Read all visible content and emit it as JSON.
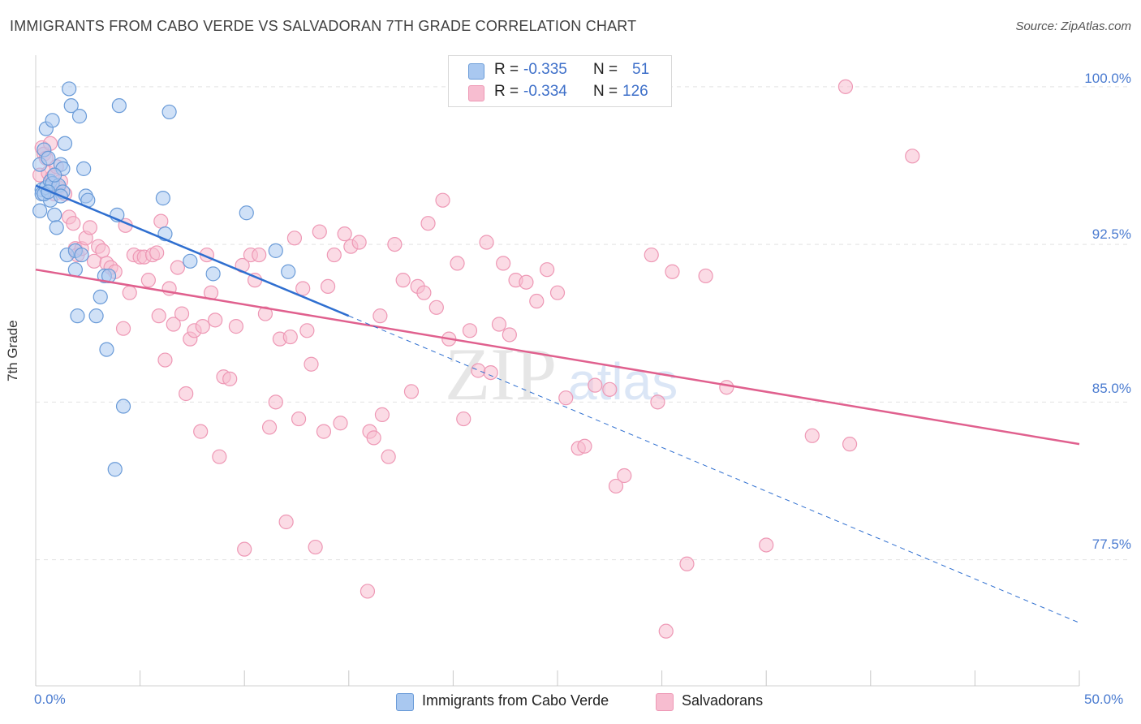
{
  "title": "IMMIGRANTS FROM CABO VERDE VS SALVADORAN 7TH GRADE CORRELATION CHART",
  "source": "Source: ZipAtlas.com",
  "watermark": {
    "zip": "ZIP",
    "atlas": "atlas"
  },
  "legend": {
    "rows": [
      {
        "r_label": "R =",
        "r_value": "-0.335",
        "n_label": "N =",
        "n_value": "51"
      },
      {
        "r_label": "R =",
        "r_value": "-0.334",
        "n_label": "N =",
        "n_value": "126"
      }
    ]
  },
  "bottom_legend": [
    "Immigrants from Cabo Verde",
    "Salvadorans"
  ],
  "colors": {
    "blue_fill": "#a9c8f0",
    "blue_stroke": "#6a9bd8",
    "blue_line": "#2f6fd0",
    "pink_fill": "#f7bdd0",
    "pink_stroke": "#ee98b5",
    "pink_line": "#e0608e",
    "tick_text": "#4a7bd0",
    "grid": "#e2e2e2"
  },
  "chart_data": {
    "type": "scatter",
    "title": "IMMIGRANTS FROM CABO VERDE VS SALVADORAN 7TH GRADE CORRELATION CHART",
    "xlabel": "",
    "ylabel": "7th Grade",
    "xlim": [
      0,
      50
    ],
    "ylim": [
      71.5,
      101.5
    ],
    "x_tick_labels": [
      "0.0%",
      "50.0%"
    ],
    "y_ticks": [
      77.5,
      85.0,
      92.5,
      100.0
    ],
    "y_tick_labels": [
      "77.5%",
      "85.0%",
      "92.5%",
      "100.0%"
    ],
    "grid": true,
    "legend_placement": "top-center",
    "series": [
      {
        "name": "Immigrants from Cabo Verde",
        "color": "blue",
        "r": -0.335,
        "n": 51,
        "trend": {
          "x0": 0.0,
          "y0": 95.3,
          "x1": 15.0,
          "y1": 89.1,
          "dashed_to_x": 50.0,
          "dashed_to_y": 74.5
        },
        "points": [
          [
            0.2,
            96.3
          ],
          [
            0.2,
            94.1
          ],
          [
            0.3,
            95.1
          ],
          [
            0.3,
            94.9
          ],
          [
            0.4,
            97.0
          ],
          [
            0.5,
            98.0
          ],
          [
            0.5,
            95.2
          ],
          [
            0.6,
            96.6
          ],
          [
            0.7,
            95.5
          ],
          [
            0.7,
            94.6
          ],
          [
            0.8,
            98.4
          ],
          [
            0.8,
            95.4
          ],
          [
            0.9,
            93.9
          ],
          [
            1.0,
            93.3
          ],
          [
            1.1,
            95.3
          ],
          [
            1.2,
            96.3
          ],
          [
            1.3,
            96.1
          ],
          [
            1.3,
            95.0
          ],
          [
            1.4,
            97.3
          ],
          [
            1.5,
            92.0
          ],
          [
            1.6,
            99.9
          ],
          [
            1.7,
            99.1
          ],
          [
            1.9,
            92.2
          ],
          [
            1.9,
            91.3
          ],
          [
            2.0,
            89.1
          ],
          [
            2.1,
            98.6
          ],
          [
            2.3,
            96.1
          ],
          [
            2.4,
            94.8
          ],
          [
            2.5,
            94.6
          ],
          [
            2.9,
            89.1
          ],
          [
            3.1,
            90.0
          ],
          [
            3.3,
            91.0
          ],
          [
            3.4,
            87.5
          ],
          [
            3.5,
            91.0
          ],
          [
            3.8,
            81.8
          ],
          [
            3.9,
            93.9
          ],
          [
            4.0,
            99.1
          ],
          [
            4.2,
            84.8
          ],
          [
            6.1,
            94.7
          ],
          [
            6.2,
            93.0
          ],
          [
            6.4,
            98.8
          ],
          [
            7.4,
            91.7
          ],
          [
            8.5,
            91.1
          ],
          [
            10.1,
            94.0
          ],
          [
            11.5,
            92.2
          ],
          [
            12.1,
            91.2
          ],
          [
            0.4,
            94.9
          ],
          [
            0.6,
            95.0
          ],
          [
            0.9,
            95.8
          ],
          [
            1.2,
            94.8
          ],
          [
            2.2,
            92.0
          ]
        ]
      },
      {
        "name": "Salvadorans",
        "color": "pink",
        "r": -0.334,
        "n": 126,
        "trend": {
          "x0": 0.0,
          "y0": 91.3,
          "x1": 50.0,
          "y1": 83.0
        },
        "points": [
          [
            0.2,
            95.8
          ],
          [
            0.3,
            97.1
          ],
          [
            0.4,
            96.8
          ],
          [
            0.5,
            96.6
          ],
          [
            0.6,
            95.9
          ],
          [
            0.7,
            97.3
          ],
          [
            0.8,
            95.7
          ],
          [
            0.9,
            94.9
          ],
          [
            1.0,
            96.2
          ],
          [
            1.1,
            95.2
          ],
          [
            1.2,
            95.5
          ],
          [
            1.4,
            94.9
          ],
          [
            1.6,
            93.8
          ],
          [
            1.8,
            93.5
          ],
          [
            1.9,
            92.3
          ],
          [
            2.0,
            92.0
          ],
          [
            2.2,
            92.3
          ],
          [
            2.4,
            92.8
          ],
          [
            2.6,
            93.3
          ],
          [
            2.8,
            91.7
          ],
          [
            3.0,
            92.4
          ],
          [
            3.2,
            92.2
          ],
          [
            3.4,
            91.6
          ],
          [
            3.6,
            91.4
          ],
          [
            3.8,
            91.2
          ],
          [
            4.2,
            88.5
          ],
          [
            4.3,
            93.4
          ],
          [
            4.5,
            90.2
          ],
          [
            4.7,
            92.0
          ],
          [
            5.0,
            91.9
          ],
          [
            5.2,
            91.9
          ],
          [
            5.4,
            90.8
          ],
          [
            5.6,
            92.0
          ],
          [
            5.8,
            92.1
          ],
          [
            5.9,
            89.1
          ],
          [
            6.0,
            93.6
          ],
          [
            6.2,
            87.0
          ],
          [
            6.4,
            90.4
          ],
          [
            6.6,
            88.7
          ],
          [
            6.8,
            91.4
          ],
          [
            7.0,
            89.2
          ],
          [
            7.2,
            85.4
          ],
          [
            7.4,
            88.0
          ],
          [
            7.6,
            88.4
          ],
          [
            7.9,
            83.6
          ],
          [
            8.0,
            88.6
          ],
          [
            8.2,
            92.0
          ],
          [
            8.4,
            90.2
          ],
          [
            8.6,
            88.9
          ],
          [
            8.8,
            82.4
          ],
          [
            9.0,
            86.2
          ],
          [
            9.3,
            86.1
          ],
          [
            9.6,
            88.6
          ],
          [
            9.9,
            91.5
          ],
          [
            10.0,
            78.0
          ],
          [
            10.3,
            92.0
          ],
          [
            10.5,
            90.8
          ],
          [
            10.7,
            92.0
          ],
          [
            11.0,
            89.2
          ],
          [
            11.2,
            83.8
          ],
          [
            11.5,
            85.0
          ],
          [
            11.7,
            88.0
          ],
          [
            12.0,
            79.3
          ],
          [
            12.2,
            88.1
          ],
          [
            12.4,
            92.8
          ],
          [
            12.6,
            84.2
          ],
          [
            12.8,
            90.4
          ],
          [
            13.0,
            88.4
          ],
          [
            13.2,
            86.8
          ],
          [
            13.4,
            78.1
          ],
          [
            13.6,
            93.1
          ],
          [
            13.8,
            83.6
          ],
          [
            14.0,
            90.5
          ],
          [
            14.3,
            92.0
          ],
          [
            14.6,
            84.0
          ],
          [
            14.8,
            93.0
          ],
          [
            15.1,
            92.4
          ],
          [
            15.5,
            92.6
          ],
          [
            15.9,
            76.0
          ],
          [
            16.0,
            83.6
          ],
          [
            16.2,
            83.3
          ],
          [
            16.5,
            89.1
          ],
          [
            16.6,
            84.4
          ],
          [
            16.9,
            82.4
          ],
          [
            17.2,
            92.5
          ],
          [
            17.6,
            90.8
          ],
          [
            18.0,
            85.5
          ],
          [
            18.3,
            90.5
          ],
          [
            18.6,
            90.2
          ],
          [
            18.8,
            93.5
          ],
          [
            19.2,
            89.5
          ],
          [
            19.5,
            94.6
          ],
          [
            19.8,
            88.0
          ],
          [
            20.2,
            91.6
          ],
          [
            20.5,
            84.2
          ],
          [
            20.8,
            88.4
          ],
          [
            21.2,
            86.5
          ],
          [
            21.6,
            92.6
          ],
          [
            21.8,
            86.4
          ],
          [
            22.2,
            88.7
          ],
          [
            22.4,
            91.6
          ],
          [
            22.7,
            88.2
          ],
          [
            23.0,
            90.8
          ],
          [
            23.5,
            90.7
          ],
          [
            24.0,
            89.8
          ],
          [
            24.5,
            91.3
          ],
          [
            25.0,
            90.2
          ],
          [
            25.4,
            85.2
          ],
          [
            26.0,
            82.8
          ],
          [
            26.3,
            82.9
          ],
          [
            26.8,
            85.8
          ],
          [
            27.5,
            85.6
          ],
          [
            27.8,
            81.0
          ],
          [
            28.2,
            81.5
          ],
          [
            29.5,
            92.0
          ],
          [
            29.8,
            85.0
          ],
          [
            30.2,
            74.1
          ],
          [
            30.5,
            91.2
          ],
          [
            31.2,
            77.3
          ],
          [
            32.1,
            91.0
          ],
          [
            33.1,
            85.7
          ],
          [
            35.0,
            78.2
          ],
          [
            37.2,
            83.4
          ],
          [
            38.8,
            100.0
          ],
          [
            39.0,
            83.0
          ],
          [
            42.0,
            96.7
          ]
        ]
      }
    ]
  }
}
